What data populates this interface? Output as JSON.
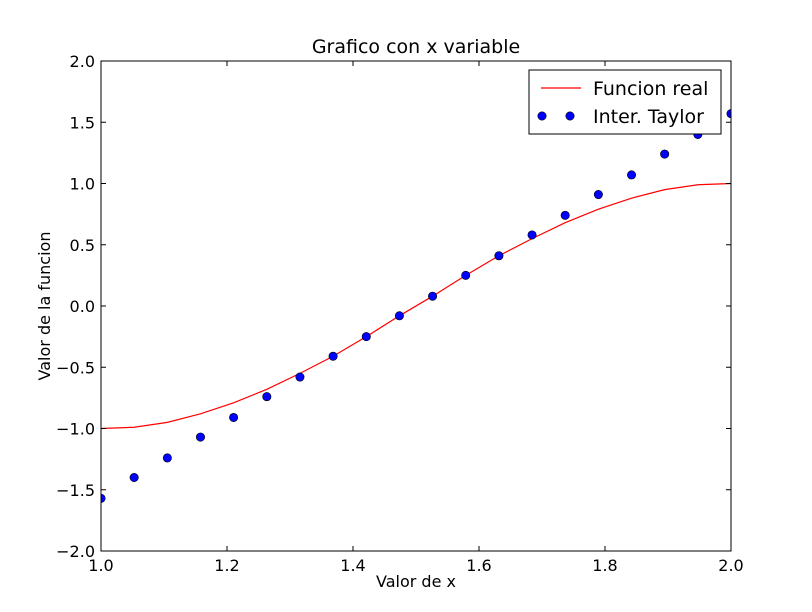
{
  "chart_data": {
    "type": "line",
    "title": "Grafico con x variable",
    "xlabel": "Valor de x",
    "ylabel": "Valor de la funcion",
    "xlim": [
      1.0,
      2.0
    ],
    "ylim": [
      -2.0,
      2.0
    ],
    "xticks": [
      1.0,
      1.2,
      1.4,
      1.6,
      1.8,
      2.0
    ],
    "xtick_labels": [
      "1.0",
      "1.2",
      "1.4",
      "1.6",
      "1.8",
      "2.0"
    ],
    "yticks": [
      -2.0,
      -1.5,
      -1.0,
      -0.5,
      0.0,
      0.5,
      1.0,
      1.5,
      2.0
    ],
    "ytick_labels": [
      "−2.0",
      "−1.5",
      "−1.0",
      "−0.5",
      "0.0",
      "0.5",
      "1.0",
      "1.5",
      "2.0"
    ],
    "grid": false,
    "legend_position": "top-right",
    "series": [
      {
        "name": "Funcion real",
        "style": "line",
        "color": "#ff0000",
        "x": [
          1.0,
          1.0526,
          1.1053,
          1.1579,
          1.2105,
          1.2632,
          1.3158,
          1.3684,
          1.4211,
          1.4737,
          1.5263,
          1.5789,
          1.6316,
          1.6842,
          1.7368,
          1.7895,
          1.8421,
          1.8947,
          1.9474,
          2.0
        ],
        "y": [
          -1.0,
          -0.99,
          -0.95,
          -0.88,
          -0.79,
          -0.68,
          -0.55,
          -0.41,
          -0.25,
          -0.08,
          0.08,
          0.25,
          0.41,
          0.55,
          0.68,
          0.79,
          0.88,
          0.95,
          0.99,
          1.0
        ]
      },
      {
        "name": "Inter. Taylor",
        "style": "markers",
        "color": "#0000ff",
        "x": [
          1.0,
          1.0526,
          1.1053,
          1.1579,
          1.2105,
          1.2632,
          1.3158,
          1.3684,
          1.4211,
          1.4737,
          1.5263,
          1.5789,
          1.6316,
          1.6842,
          1.7368,
          1.7895,
          1.8421,
          1.8947,
          1.9474,
          2.0
        ],
        "y": [
          -1.57,
          -1.4,
          -1.24,
          -1.07,
          -0.91,
          -0.74,
          -0.58,
          -0.41,
          -0.25,
          -0.08,
          0.08,
          0.25,
          0.41,
          0.58,
          0.74,
          0.91,
          1.07,
          1.24,
          1.4,
          1.57
        ]
      }
    ]
  }
}
